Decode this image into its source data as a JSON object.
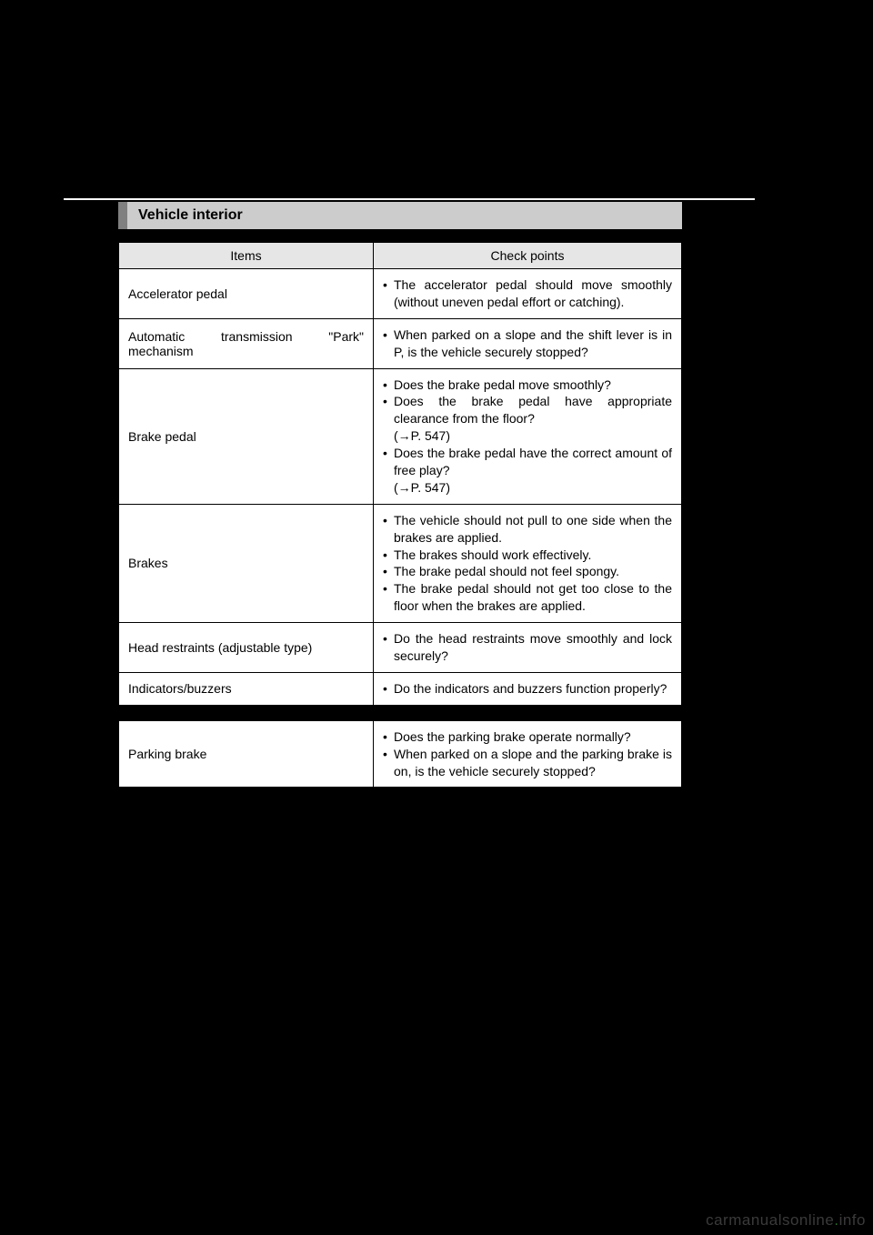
{
  "section": {
    "title": "Vehicle interior"
  },
  "table": {
    "headers": {
      "items": "Items",
      "checkpoints": "Check points"
    },
    "rows": [
      {
        "item": "Accelerator pedal",
        "points": [
          {
            "text": "The accelerator pedal should move smoothly (without uneven pedal effort or catching)."
          }
        ]
      },
      {
        "item": "Automatic transmission \"Park\" mechanism",
        "item_justify": true,
        "points": [
          {
            "text": "When parked on a slope and the shift lever is in P, is the vehicle securely stopped?"
          }
        ]
      },
      {
        "item": "Brake pedal",
        "points": [
          {
            "text": "Does the brake pedal move smoothly?"
          },
          {
            "text": "Does the brake pedal have appropriate clearance from the floor?",
            "ref": "(→P. 547)"
          },
          {
            "text": "Does the brake pedal have the correct amount of free play?",
            "ref": "(→P. 547)"
          }
        ]
      },
      {
        "item": "Brakes",
        "points": [
          {
            "text": "The vehicle should not pull to one side when the brakes are applied."
          },
          {
            "text": "The brakes should work effectively."
          },
          {
            "text": "The brake pedal should not feel spongy."
          },
          {
            "text": "The brake pedal should not get too close to the floor when the brakes are applied."
          }
        ]
      },
      {
        "item": "Head restraints (adjustable type)",
        "points": [
          {
            "text": "Do the head restraints move smoothly and lock securely?"
          }
        ]
      },
      {
        "item": "Indicators/buzzers",
        "points": [
          {
            "text": "Do the indicators and buzzers function properly?"
          }
        ]
      }
    ],
    "rows2": [
      {
        "item": "Parking brake",
        "points": [
          {
            "text": "Does the parking brake operate normally?"
          },
          {
            "text": "When parked on a slope and the parking brake is on, is the vehicle securely stopped?"
          }
        ]
      }
    ]
  },
  "watermark": {
    "prefix": "carmanualsonline",
    "suffix": "info"
  }
}
